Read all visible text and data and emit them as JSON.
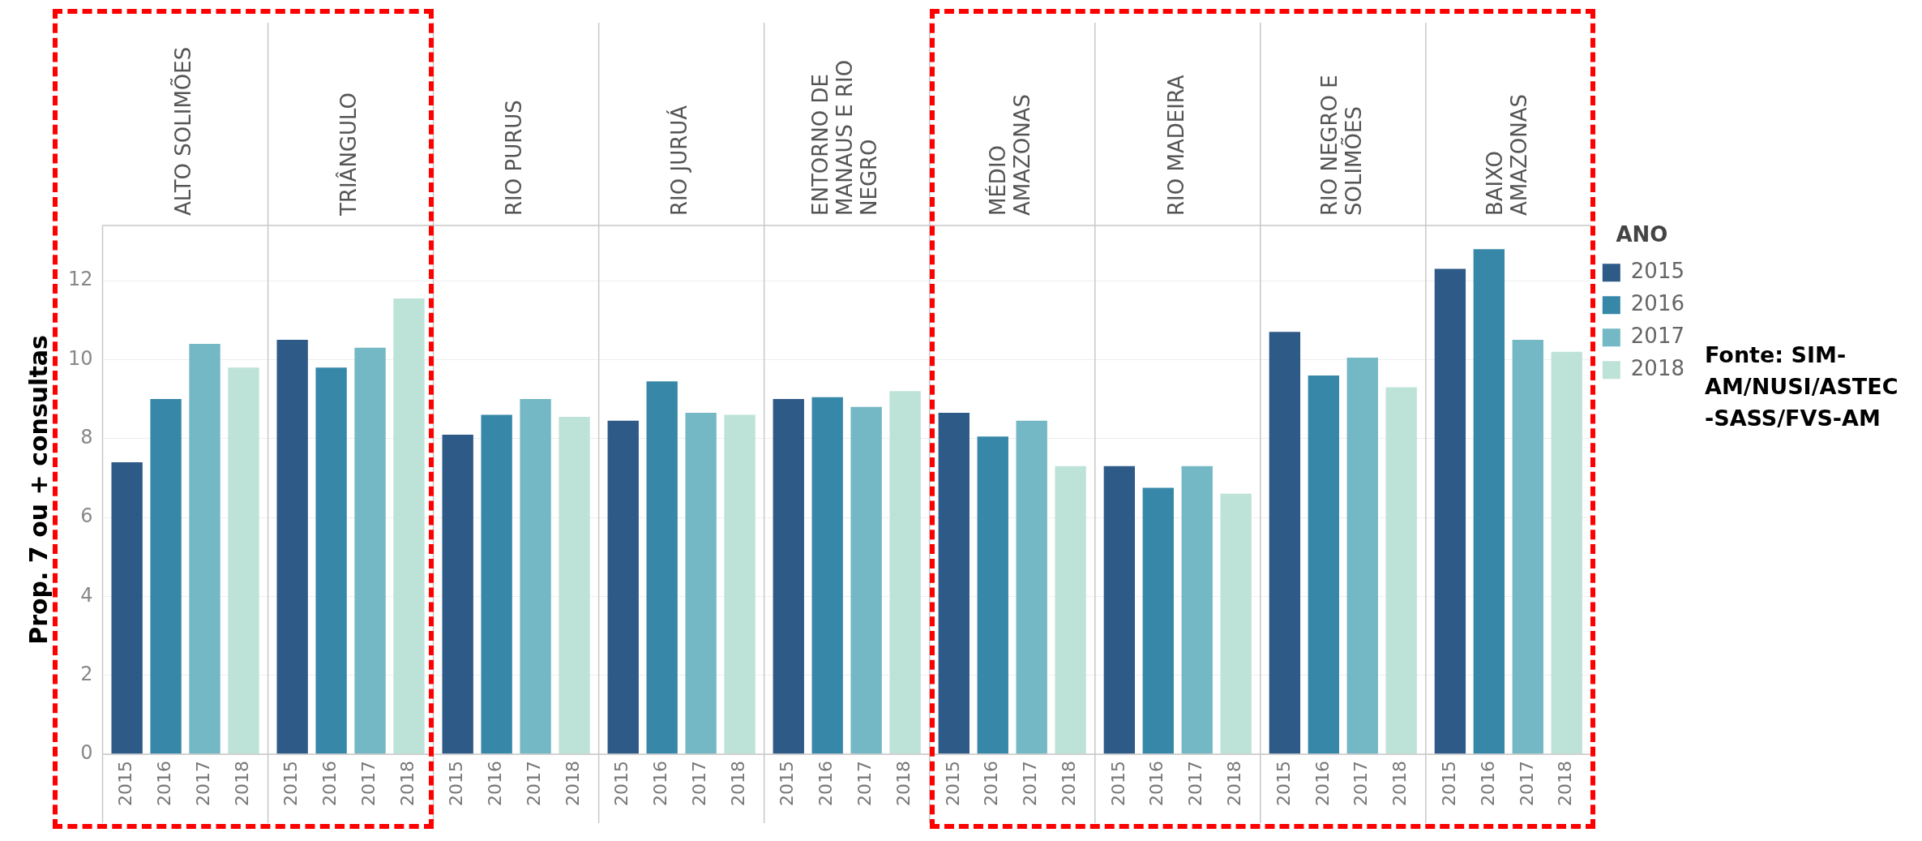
{
  "chart_data": {
    "type": "bar",
    "ylabel": "Prop. 7 ou + consultas",
    "legend_title": "ANO",
    "legend": "top right",
    "grid": "y",
    "categories": [
      "ALTO SOLIMÕES",
      "TRIÂNGULO",
      "RIO PURUS",
      "RIO JURUÁ",
      "ENTORNO DE MANAUS E RIO NEGRO",
      "MÉDIO AMAZONAS",
      "RIO MADEIRA",
      "RIO NEGRO E SOLIMÕES",
      "BAIXO AMAZONAS"
    ],
    "series": [
      {
        "name": "2015",
        "color": "#2e5a87",
        "values": [
          7.4,
          10.5,
          8.1,
          8.45,
          9.0,
          8.65,
          7.3,
          10.7,
          12.3
        ]
      },
      {
        "name": "2016",
        "color": "#3787a8",
        "values": [
          9.0,
          9.8,
          8.6,
          9.45,
          9.05,
          8.05,
          6.75,
          9.6,
          12.8
        ]
      },
      {
        "name": "2017",
        "color": "#73b8c4",
        "values": [
          10.4,
          10.3,
          9.0,
          8.65,
          8.8,
          8.45,
          7.3,
          10.05,
          10.5
        ]
      },
      {
        "name": "2018",
        "color": "#bde3d8",
        "values": [
          9.8,
          11.55,
          8.55,
          8.6,
          9.2,
          7.3,
          6.6,
          9.3,
          10.2
        ]
      }
    ],
    "ylim": [
      0,
      13.4
    ],
    "yticks": [
      0,
      2,
      4,
      6,
      8,
      10,
      12
    ],
    "annotations": [
      "Fonte: SIM-AM/NUSI/ASTEC -SASS/FVS-AM"
    ]
  }
}
